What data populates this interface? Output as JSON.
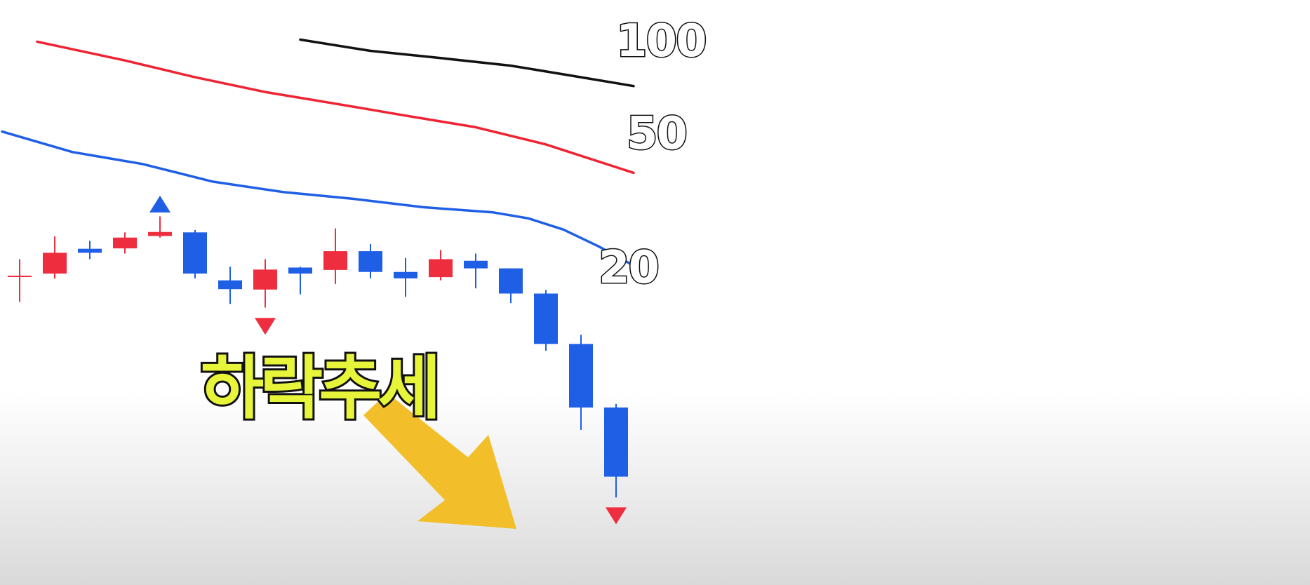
{
  "annotation": {
    "trend_text": "하락추세"
  },
  "colors": {
    "bullish": "#ee2d3f",
    "bearish": "#1f5fe6",
    "ma20": "#1f5fe6",
    "ma50": "#ee2433",
    "ma100": "#111111",
    "arrow": "#f2bf2a",
    "label_text": "#e6f53a"
  },
  "chart_data": {
    "type": "candlestick",
    "title": "",
    "xlabel": "",
    "ylabel": "",
    "ylim": [
      0,
      100
    ],
    "grid": false,
    "candles": [
      {
        "open": 49.3,
        "close": 49.3,
        "high": 53.6,
        "low": 42.9,
        "color": "red"
      },
      {
        "open": 50.0,
        "close": 55.2,
        "high": 59.3,
        "low": 48.7,
        "color": "red"
      },
      {
        "open": 56.2,
        "close": 55.2,
        "high": 58.2,
        "low": 53.6,
        "color": "blue"
      },
      {
        "open": 56.3,
        "close": 59.0,
        "high": 60.3,
        "low": 55.0,
        "color": "red"
      },
      {
        "open": 59.4,
        "close": 60.4,
        "high": 64.3,
        "low": 59.0,
        "color": "red"
      },
      {
        "open": 60.3,
        "close": 50.0,
        "high": 60.9,
        "low": 48.8,
        "color": "blue"
      },
      {
        "open": 48.3,
        "close": 46.1,
        "high": 51.7,
        "low": 42.4,
        "color": "blue"
      },
      {
        "open": 46.0,
        "close": 51.0,
        "high": 53.6,
        "low": 41.5,
        "color": "red"
      },
      {
        "open": 51.5,
        "close": 50.0,
        "high": 51.7,
        "low": 44.8,
        "color": "blue"
      },
      {
        "open": 50.9,
        "close": 55.6,
        "high": 61.3,
        "low": 47.4,
        "color": "red"
      },
      {
        "open": 55.6,
        "close": 50.4,
        "high": 57.4,
        "low": 48.8,
        "color": "blue"
      },
      {
        "open": 50.4,
        "close": 48.8,
        "high": 53.9,
        "low": 44.2,
        "color": "blue"
      },
      {
        "open": 49.1,
        "close": 53.6,
        "high": 55.9,
        "low": 48.3,
        "color": "red"
      },
      {
        "open": 53.2,
        "close": 51.3,
        "high": 55.0,
        "low": 46.3,
        "color": "blue"
      },
      {
        "open": 51.3,
        "close": 45.0,
        "high": 51.3,
        "low": 42.6,
        "color": "blue"
      },
      {
        "open": 45.0,
        "close": 32.4,
        "high": 45.9,
        "low": 30.7,
        "color": "blue"
      },
      {
        "open": 32.4,
        "close": 16.5,
        "high": 34.7,
        "low": 10.9,
        "color": "blue"
      },
      {
        "open": 16.5,
        "close": -0.8,
        "high": 17.4,
        "low": -6.0,
        "color": "blue"
      }
    ],
    "moving_averages": [
      {
        "name": "100",
        "color": "black",
        "values": [
          [
            8,
            108.5
          ],
          [
            10,
            105.7
          ],
          [
            12,
            103.9
          ],
          [
            14,
            102.0
          ],
          [
            16,
            99.1
          ],
          [
            17.5,
            96.9
          ]
        ]
      },
      {
        "name": "50",
        "color": "red",
        "values": [
          [
            0.5,
            108.0
          ],
          [
            3,
            103.3
          ],
          [
            5,
            99.1
          ],
          [
            7,
            95.4
          ],
          [
            9,
            92.5
          ],
          [
            11,
            89.5
          ],
          [
            13,
            86.6
          ],
          [
            15,
            82.3
          ],
          [
            17.5,
            75.2
          ]
        ]
      },
      {
        "name": "20",
        "color": "blue",
        "values": [
          [
            -0.5,
            85.5
          ],
          [
            1.5,
            80.4
          ],
          [
            3.5,
            77.4
          ],
          [
            5.5,
            73.0
          ],
          [
            7.5,
            70.4
          ],
          [
            9.5,
            68.7
          ],
          [
            11.5,
            66.6
          ],
          [
            13.5,
            65.3
          ],
          [
            14.5,
            63.8
          ],
          [
            15.5,
            61.0
          ],
          [
            16.5,
            56.8
          ],
          [
            17.5,
            52.0
          ]
        ]
      }
    ],
    "signals": [
      {
        "index": 4,
        "type": "up",
        "color": "blue",
        "y": 67.4
      },
      {
        "index": 7,
        "type": "down",
        "color": "red",
        "y": 36.8
      },
      {
        "index": 17,
        "type": "down",
        "color": "red",
        "y": -10.6
      }
    ],
    "annotations": [
      {
        "text": "하락추세",
        "type": "down-arrow"
      }
    ],
    "ma_labels": [
      "100",
      "50",
      "20"
    ]
  }
}
